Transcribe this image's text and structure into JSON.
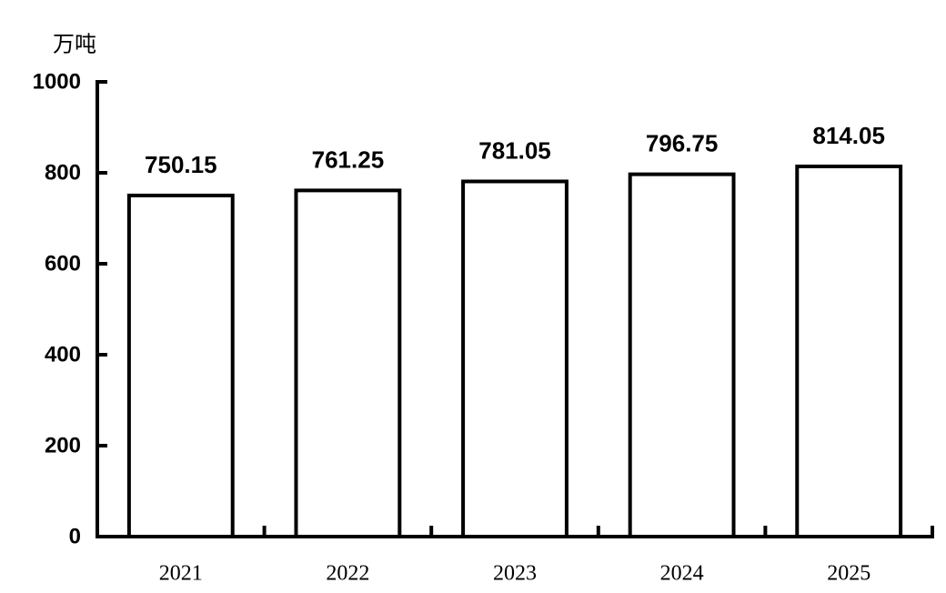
{
  "chart_data": {
    "type": "bar",
    "y_label": "万吨",
    "categories": [
      "2021",
      "2022",
      "2023",
      "2024",
      "2025"
    ],
    "values": [
      750.15,
      761.25,
      781.05,
      796.75,
      814.05
    ],
    "color": "#ffffff",
    "ylim": [
      0,
      1000
    ],
    "yticks": [
      0,
      200,
      400,
      600,
      800,
      1000
    ],
    "grid": false
  }
}
